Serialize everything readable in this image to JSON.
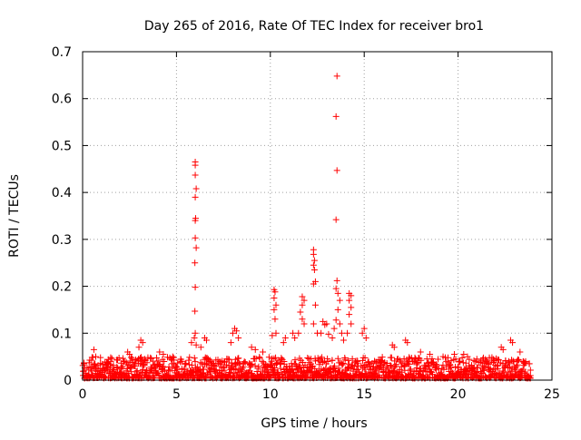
{
  "chart_data": {
    "type": "scatter",
    "title": "Day 265 of 2016, Rate Of TEC Index for receiver bro1",
    "xlabel": "GPS time / hours",
    "ylabel": "ROTI / TECUs",
    "xlim": [
      0,
      25
    ],
    "ylim": [
      0,
      0.7
    ],
    "xticks": [
      0,
      5,
      10,
      15,
      20,
      25
    ],
    "yticks": [
      0,
      0.1,
      0.2,
      0.3,
      0.4,
      0.5,
      0.6,
      0.7
    ],
    "x_tick_labels": [
      "0",
      "5",
      "10",
      "15",
      "20",
      "25"
    ],
    "y_tick_labels": [
      "0",
      "0.1",
      "0.2",
      "0.3",
      "0.4",
      "0.5",
      "0.6",
      "0.7"
    ],
    "grid": true,
    "marker": "+",
    "color": "#ff0000",
    "series": [
      {
        "name": "ROTI",
        "points": [
          [
            6.0,
            0.465
          ],
          [
            6.0,
            0.458
          ],
          [
            6.0,
            0.437
          ],
          [
            6.05,
            0.408
          ],
          [
            6.0,
            0.39
          ],
          [
            6.02,
            0.345
          ],
          [
            6.0,
            0.34
          ],
          [
            6.0,
            0.303
          ],
          [
            6.05,
            0.282
          ],
          [
            5.98,
            0.25
          ],
          [
            6.0,
            0.198
          ],
          [
            5.98,
            0.147
          ],
          [
            6.0,
            0.1
          ],
          [
            5.95,
            0.09
          ],
          [
            6.05,
            0.075
          ],
          [
            13.55,
            0.648
          ],
          [
            13.5,
            0.562
          ],
          [
            13.55,
            0.447
          ],
          [
            13.5,
            0.342
          ],
          [
            13.55,
            0.212
          ],
          [
            13.5,
            0.195
          ],
          [
            13.6,
            0.185
          ],
          [
            13.7,
            0.17
          ],
          [
            13.6,
            0.15
          ],
          [
            13.5,
            0.128
          ],
          [
            13.7,
            0.12
          ],
          [
            13.4,
            0.11
          ],
          [
            13.8,
            0.1
          ],
          [
            13.3,
            0.09
          ],
          [
            13.9,
            0.085
          ],
          [
            12.3,
            0.278
          ],
          [
            12.3,
            0.268
          ],
          [
            12.35,
            0.255
          ],
          [
            12.3,
            0.245
          ],
          [
            12.35,
            0.235
          ],
          [
            12.4,
            0.21
          ],
          [
            12.3,
            0.205
          ],
          [
            12.4,
            0.16
          ],
          [
            12.3,
            0.12
          ],
          [
            12.5,
            0.1
          ],
          [
            11.7,
            0.178
          ],
          [
            11.8,
            0.17
          ],
          [
            11.7,
            0.16
          ],
          [
            11.6,
            0.145
          ],
          [
            11.7,
            0.13
          ],
          [
            11.8,
            0.12
          ],
          [
            11.5,
            0.1
          ],
          [
            10.2,
            0.193
          ],
          [
            10.25,
            0.188
          ],
          [
            10.2,
            0.175
          ],
          [
            10.3,
            0.16
          ],
          [
            10.2,
            0.15
          ],
          [
            10.25,
            0.13
          ],
          [
            10.3,
            0.1
          ],
          [
            10.1,
            0.095
          ],
          [
            14.2,
            0.185
          ],
          [
            14.3,
            0.18
          ],
          [
            14.2,
            0.17
          ],
          [
            14.3,
            0.155
          ],
          [
            14.2,
            0.14
          ],
          [
            14.3,
            0.12
          ],
          [
            14.1,
            0.1
          ],
          [
            12.8,
            0.125
          ],
          [
            12.9,
            0.118
          ],
          [
            13.0,
            0.12
          ],
          [
            12.7,
            0.1
          ],
          [
            13.1,
            0.098
          ],
          [
            11.2,
            0.1
          ],
          [
            11.3,
            0.09
          ],
          [
            10.8,
            0.09
          ],
          [
            10.7,
            0.08
          ],
          [
            15.0,
            0.11
          ],
          [
            14.9,
            0.1
          ],
          [
            15.1,
            0.09
          ],
          [
            8.1,
            0.11
          ],
          [
            8.2,
            0.105
          ],
          [
            8.0,
            0.1
          ],
          [
            8.3,
            0.09
          ],
          [
            7.9,
            0.08
          ],
          [
            5.8,
            0.08
          ],
          [
            6.3,
            0.07
          ],
          [
            6.5,
            0.09
          ],
          [
            6.6,
            0.085
          ],
          [
            3.1,
            0.085
          ],
          [
            3.2,
            0.08
          ],
          [
            3.0,
            0.07
          ],
          [
            2.4,
            0.06
          ],
          [
            2.5,
            0.055
          ],
          [
            0.6,
            0.065
          ],
          [
            0.7,
            0.05
          ],
          [
            1.5,
            0.04
          ],
          [
            4.1,
            0.06
          ],
          [
            4.3,
            0.055
          ],
          [
            4.8,
            0.05
          ],
          [
            9.0,
            0.07
          ],
          [
            9.2,
            0.065
          ],
          [
            9.6,
            0.06
          ],
          [
            16.5,
            0.075
          ],
          [
            16.6,
            0.07
          ],
          [
            17.2,
            0.085
          ],
          [
            17.3,
            0.08
          ],
          [
            18.0,
            0.06
          ],
          [
            18.5,
            0.055
          ],
          [
            19.2,
            0.05
          ],
          [
            19.8,
            0.055
          ],
          [
            20.3,
            0.055
          ],
          [
            20.5,
            0.05
          ],
          [
            21.0,
            0.045
          ],
          [
            21.5,
            0.04
          ],
          [
            22.3,
            0.07
          ],
          [
            22.4,
            0.065
          ],
          [
            22.8,
            0.085
          ],
          [
            22.9,
            0.08
          ],
          [
            23.3,
            0.06
          ],
          [
            23.6,
            0.04
          ],
          [
            23.8,
            0.035
          ]
        ]
      }
    ],
    "dense_band": {
      "description": "dense continuous noise band of ROTI values from 0 to about 0.04 across the full day",
      "x_range": [
        0,
        23.9
      ],
      "y_range": [
        0.0,
        0.045
      ]
    }
  }
}
